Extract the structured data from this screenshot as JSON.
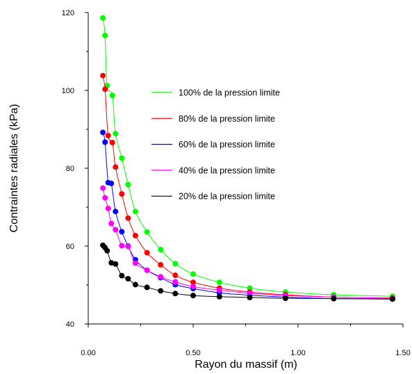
{
  "chart_data": {
    "type": "line",
    "xlabel": "Rayon du massif (m)",
    "ylabel": "Contraintes radiales (kPa)",
    "xlim": [
      0,
      1.5
    ],
    "ylim": [
      40,
      120
    ],
    "x_ticks": [
      0,
      0.5,
      1.0,
      1.5
    ],
    "x_tick_labels": [
      "0.00",
      "0.50",
      "1.00",
      "1.50"
    ],
    "y_ticks": [
      40,
      60,
      80,
      100,
      120
    ],
    "y_tick_labels": [
      "40",
      "60",
      "80",
      "100",
      "120"
    ],
    "grid": false,
    "legend_placement": "center-right",
    "series": [
      {
        "name": "100% de la pression limite",
        "color": "#00ff00",
        "x": [
          0.07,
          0.08,
          0.09,
          0.115,
          0.13,
          0.16,
          0.19,
          0.225,
          0.28,
          0.345,
          0.415,
          0.5,
          0.625,
          0.77,
          0.94,
          1.17,
          1.45
        ],
        "y": [
          118.6,
          114.1,
          101.2,
          98.7,
          88.9,
          82.6,
          75.8,
          68.9,
          63.6,
          59.1,
          55.5,
          52.8,
          50.7,
          49.2,
          48.2,
          47.5,
          47.1
        ]
      },
      {
        "name": "80% de la pression limite",
        "color": "#ff0000",
        "x": [
          0.07,
          0.08,
          0.095,
          0.115,
          0.13,
          0.16,
          0.19,
          0.225,
          0.28,
          0.345,
          0.415,
          0.5,
          0.625,
          0.77,
          0.94,
          1.17,
          1.45
        ],
        "y": [
          103.8,
          100.3,
          88.4,
          86.6,
          80.3,
          73.4,
          67.2,
          62.7,
          58.3,
          55.2,
          52.5,
          50.7,
          49.2,
          48.2,
          47.5,
          46.9,
          46.7
        ]
      },
      {
        "name": "60% de la pression limite",
        "color": "#0000ff",
        "x": [
          0.07,
          0.08,
          0.095,
          0.11,
          0.13,
          0.16,
          0.19,
          0.225,
          0.28,
          0.345,
          0.415,
          0.5,
          0.625,
          0.77,
          0.94,
          1.17,
          1.45
        ],
        "y": [
          89.2,
          86.7,
          76.3,
          76.1,
          68.9,
          63.7,
          60.0,
          56.5,
          53.8,
          51.9,
          50.1,
          49.1,
          48.0,
          47.4,
          46.9,
          46.5,
          46.5
        ]
      },
      {
        "name": "40% de la pression limite",
        "color": "#ff00ff",
        "x": [
          0.07,
          0.08,
          0.095,
          0.11,
          0.13,
          0.16,
          0.19,
          0.225,
          0.28,
          0.345,
          0.415,
          0.5,
          0.625,
          0.77,
          0.94,
          1.17,
          1.45
        ],
        "y": [
          74.9,
          72.4,
          69.7,
          65.8,
          64.2,
          60.1,
          59.9,
          55.6,
          53.8,
          52.1,
          50.8,
          49.6,
          48.7,
          47.9,
          47.3,
          46.9,
          46.6
        ]
      },
      {
        "name": "20% de la pression limite",
        "color": "#000000",
        "x": [
          0.07,
          0.08,
          0.09,
          0.11,
          0.13,
          0.16,
          0.19,
          0.225,
          0.28,
          0.345,
          0.415,
          0.5,
          0.625,
          0.77,
          0.94,
          1.17,
          1.45
        ],
        "y": [
          60.2,
          59.6,
          58.8,
          55.7,
          55.4,
          52.4,
          51.6,
          50.1,
          49.4,
          48.5,
          47.8,
          47.3,
          47.0,
          46.8,
          46.6,
          46.5,
          46.4
        ]
      }
    ]
  }
}
